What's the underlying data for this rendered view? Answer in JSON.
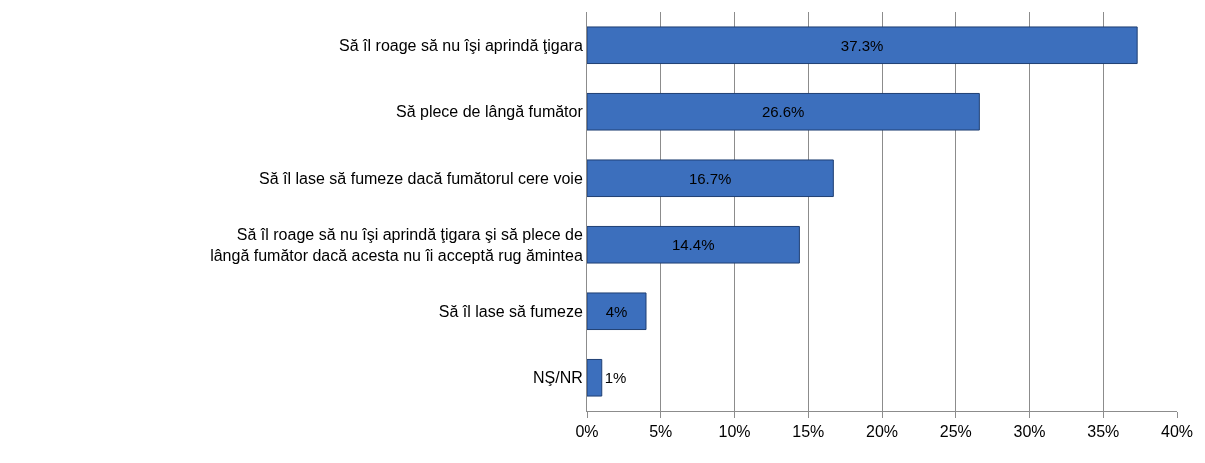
{
  "chart_data": {
    "type": "bar",
    "orientation": "horizontal",
    "categories": [
      "Să îl roage să nu îşi aprindă ţigara",
      "Să plece de lângă fumător",
      "Să îl lase să fumeze dacă fumătorul cere voie",
      "Să îl roage să nu îşi aprindă ţigara şi să plece de\nlângă fumător dacă acesta nu îi acceptă rug ămintea",
      "Să îl lase să fumeze",
      "NŞ/NR"
    ],
    "values": [
      37.3,
      26.6,
      16.7,
      14.4,
      4,
      1
    ],
    "value_labels": [
      "37.3%",
      "26.6%",
      "16.7%",
      "14.4%",
      "4%",
      "1%"
    ],
    "color": "#3c6fbd",
    "xlim": [
      0,
      40
    ],
    "xticks": [
      {
        "value": 0,
        "label": "0%"
      },
      {
        "value": 5,
        "label": "5%"
      },
      {
        "value": 10,
        "label": "10%"
      },
      {
        "value": 15,
        "label": "15%"
      },
      {
        "value": 20,
        "label": "20%"
      },
      {
        "value": 25,
        "label": "25%"
      },
      {
        "value": 30,
        "label": "30%"
      },
      {
        "value": 35,
        "label": "35%"
      },
      {
        "value": 40,
        "label": "40%"
      }
    ],
    "grid": "x"
  }
}
